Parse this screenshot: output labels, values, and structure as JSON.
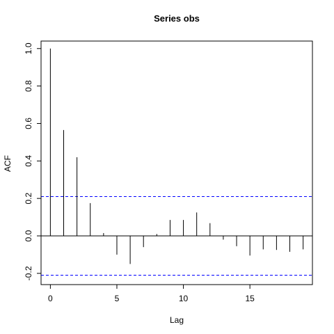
{
  "chart_data": {
    "type": "bar",
    "title": "Series  obs",
    "xlabel": "Lag",
    "ylabel": "ACF",
    "xlim": [
      -0.7,
      19.7
    ],
    "ylim": [
      -0.26,
      1.04
    ],
    "xticks": [
      0,
      5,
      10,
      15
    ],
    "yticks": [
      -0.2,
      0.0,
      0.2,
      0.4,
      0.6,
      0.8,
      1.0
    ],
    "ytick_labels": [
      "-0.2",
      "0.0",
      "0.2",
      "0.4",
      "0.6",
      "0.8",
      "1.0"
    ],
    "lags": [
      0,
      1,
      2,
      3,
      4,
      5,
      6,
      7,
      8,
      9,
      10,
      11,
      12,
      13,
      14,
      15,
      16,
      17,
      18,
      19
    ],
    "acf": [
      1.0,
      0.565,
      0.42,
      0.175,
      0.015,
      -0.1,
      -0.15,
      -0.06,
      0.01,
      0.085,
      0.085,
      0.125,
      0.068,
      -0.02,
      -0.055,
      -0.105,
      -0.072,
      -0.075,
      -0.085,
      -0.072
    ],
    "confidence_bound": 0.21,
    "confidence_color": "#0000ff",
    "grid": false,
    "legend": "none"
  }
}
